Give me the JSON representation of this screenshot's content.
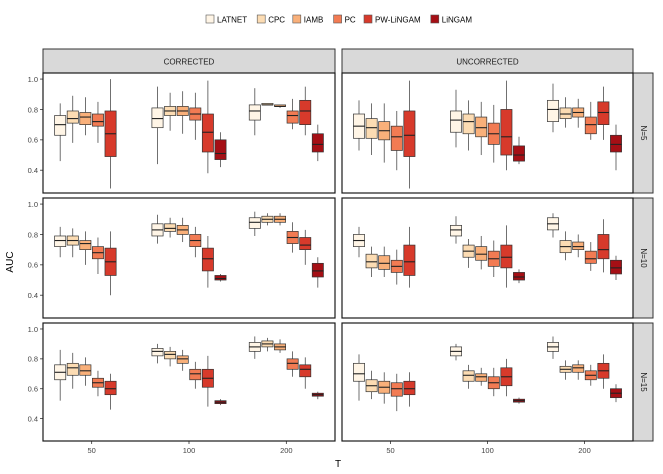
{
  "chart_data": {
    "type": "box",
    "legend": {
      "position": "top",
      "entries": [
        {
          "name": "LATNET",
          "color": "#fff5e6"
        },
        {
          "name": "CPC",
          "color": "#fcdcb3"
        },
        {
          "name": "IAMB",
          "color": "#f9b07a"
        },
        {
          "name": "PC",
          "color": "#f27b53"
        },
        {
          "name": "PW-LiNGAM",
          "color": "#d73a2b"
        },
        {
          "name": "LiNGAM",
          "color": "#a50f15"
        }
      ]
    },
    "xlabel": "T",
    "ylabel": "AUC",
    "x_categories": [
      "50",
      "100",
      "200"
    ],
    "ylim": [
      0.25,
      1.04
    ],
    "yticks": [
      0.4,
      0.6,
      0.8,
      1.0
    ],
    "ytick_labels": [
      "0.4",
      "0.6",
      "0.8",
      "1.0"
    ],
    "columns": [
      "CORRECTED",
      "UNCORRECTED"
    ],
    "rows": [
      "N=5",
      "N=10",
      "N=15"
    ],
    "panels": [
      {
        "column": "CORRECTED",
        "row": "N=5",
        "groups": [
          {
            "T": "50",
            "boxes": [
              [
                0.46,
                0.63,
                0.7,
                0.76,
                0.84
              ],
              [
                0.58,
                0.71,
                0.74,
                0.79,
                0.89
              ],
              [
                0.63,
                0.7,
                0.75,
                0.78,
                0.88
              ],
              [
                0.58,
                0.69,
                0.72,
                0.77,
                0.85
              ],
              [
                0.28,
                0.49,
                0.64,
                0.79,
                1.0
              ],
              null
            ]
          },
          {
            "T": "100",
            "boxes": [
              [
                0.44,
                0.68,
                0.74,
                0.81,
                0.95
              ],
              [
                0.66,
                0.76,
                0.79,
                0.82,
                0.91
              ],
              [
                0.64,
                0.76,
                0.79,
                0.82,
                0.92
              ],
              [
                0.6,
                0.73,
                0.77,
                0.81,
                0.91
              ],
              [
                0.38,
                0.52,
                0.65,
                0.77,
                0.99
              ],
              [
                0.42,
                0.47,
                0.51,
                0.6,
                0.65
              ]
            ]
          },
          {
            "T": "200",
            "boxes": [
              [
                0.63,
                0.73,
                0.79,
                0.83,
                0.94
              ],
              [
                0.83,
                0.83,
                0.83,
                0.84,
                0.84
              ],
              [
                0.81,
                0.82,
                0.82,
                0.83,
                0.83
              ],
              [
                0.67,
                0.71,
                0.76,
                0.79,
                0.87
              ],
              [
                0.63,
                0.7,
                0.79,
                0.86,
                0.95
              ],
              [
                0.46,
                0.52,
                0.57,
                0.64,
                0.7
              ]
            ]
          }
        ]
      },
      {
        "column": "UNCORRECTED",
        "row": "N=5",
        "groups": [
          {
            "T": "50",
            "boxes": [
              [
                0.53,
                0.61,
                0.69,
                0.77,
                0.86
              ],
              [
                0.5,
                0.61,
                0.68,
                0.74,
                0.84
              ],
              [
                0.45,
                0.6,
                0.66,
                0.72,
                0.84
              ],
              [
                0.4,
                0.53,
                0.62,
                0.69,
                0.79
              ],
              [
                0.28,
                0.49,
                0.63,
                0.79,
                0.99
              ],
              null
            ]
          },
          {
            "T": "100",
            "boxes": [
              [
                0.55,
                0.65,
                0.73,
                0.79,
                0.93
              ],
              [
                0.53,
                0.64,
                0.72,
                0.77,
                0.86
              ],
              [
                0.5,
                0.62,
                0.68,
                0.75,
                0.85
              ],
              [
                0.45,
                0.57,
                0.64,
                0.71,
                0.83
              ],
              [
                0.4,
                0.5,
                0.62,
                0.8,
                0.99
              ],
              [
                0.44,
                0.46,
                0.5,
                0.56,
                0.62
              ]
            ]
          },
          {
            "T": "200",
            "boxes": [
              [
                0.65,
                0.72,
                0.8,
                0.86,
                0.97
              ],
              [
                0.68,
                0.74,
                0.77,
                0.81,
                0.88
              ],
              [
                0.68,
                0.75,
                0.78,
                0.81,
                0.87
              ],
              [
                0.6,
                0.64,
                0.7,
                0.75,
                0.85
              ],
              [
                0.6,
                0.7,
                0.78,
                0.85,
                0.95
              ],
              [
                0.4,
                0.52,
                0.57,
                0.63,
                0.7
              ]
            ]
          }
        ]
      },
      {
        "column": "CORRECTED",
        "row": "N=10",
        "groups": [
          {
            "T": "50",
            "boxes": [
              [
                0.65,
                0.72,
                0.76,
                0.79,
                0.85
              ],
              [
                0.65,
                0.73,
                0.76,
                0.79,
                0.84
              ],
              [
                0.6,
                0.7,
                0.74,
                0.76,
                0.82
              ],
              [
                0.54,
                0.64,
                0.68,
                0.72,
                0.78
              ],
              [
                0.4,
                0.53,
                0.62,
                0.71,
                0.82
              ],
              null
            ]
          },
          {
            "T": "100",
            "boxes": [
              [
                0.74,
                0.79,
                0.83,
                0.87,
                0.93
              ],
              [
                0.78,
                0.82,
                0.84,
                0.87,
                0.91
              ],
              [
                0.75,
                0.8,
                0.83,
                0.86,
                0.91
              ],
              [
                0.65,
                0.72,
                0.76,
                0.8,
                0.85
              ],
              [
                0.45,
                0.56,
                0.64,
                0.71,
                0.79
              ],
              [
                0.49,
                0.5,
                0.51,
                0.53,
                0.54
              ]
            ]
          },
          {
            "T": "200",
            "boxes": [
              [
                0.79,
                0.84,
                0.88,
                0.91,
                0.95
              ],
              [
                0.86,
                0.88,
                0.9,
                0.92,
                0.94
              ],
              [
                0.86,
                0.88,
                0.9,
                0.92,
                0.94
              ],
              [
                0.68,
                0.74,
                0.78,
                0.82,
                0.88
              ],
              [
                0.6,
                0.7,
                0.73,
                0.78,
                0.83
              ],
              [
                0.45,
                0.52,
                0.56,
                0.61,
                0.65
              ]
            ]
          }
        ]
      },
      {
        "column": "UNCORRECTED",
        "row": "N=10",
        "groups": [
          {
            "T": "50",
            "boxes": [
              [
                0.65,
                0.72,
                0.76,
                0.8,
                0.85
              ],
              [
                0.52,
                0.58,
                0.62,
                0.67,
                0.72
              ],
              [
                0.52,
                0.57,
                0.61,
                0.66,
                0.72
              ],
              [
                0.47,
                0.55,
                0.59,
                0.63,
                0.7
              ],
              [
                0.45,
                0.53,
                0.62,
                0.73,
                0.85
              ],
              null
            ]
          },
          {
            "T": "100",
            "boxes": [
              [
                0.74,
                0.79,
                0.83,
                0.86,
                0.92
              ],
              [
                0.58,
                0.65,
                0.69,
                0.73,
                0.77
              ],
              [
                0.57,
                0.63,
                0.67,
                0.72,
                0.79
              ],
              [
                0.52,
                0.59,
                0.64,
                0.69,
                0.76
              ],
              [
                0.45,
                0.58,
                0.65,
                0.73,
                0.86
              ],
              [
                0.48,
                0.5,
                0.52,
                0.55,
                0.57
              ]
            ]
          },
          {
            "T": "200",
            "boxes": [
              [
                0.78,
                0.83,
                0.87,
                0.91,
                0.94
              ],
              [
                0.63,
                0.68,
                0.72,
                0.76,
                0.82
              ],
              [
                0.65,
                0.7,
                0.72,
                0.75,
                0.8
              ],
              [
                0.56,
                0.61,
                0.64,
                0.69,
                0.75
              ],
              [
                0.55,
                0.64,
                0.7,
                0.8,
                0.9
              ],
              [
                0.5,
                0.54,
                0.58,
                0.63,
                0.66
              ]
            ]
          }
        ]
      },
      {
        "column": "CORRECTED",
        "row": "N=15",
        "groups": [
          {
            "T": "50",
            "boxes": [
              [
                0.52,
                0.66,
                0.71,
                0.76,
                0.86
              ],
              [
                0.6,
                0.69,
                0.74,
                0.77,
                0.84
              ],
              [
                0.62,
                0.69,
                0.72,
                0.76,
                0.81
              ],
              [
                0.55,
                0.61,
                0.64,
                0.67,
                0.72
              ],
              [
                0.46,
                0.56,
                0.6,
                0.65,
                0.7
              ],
              null
            ]
          },
          {
            "T": "100",
            "boxes": [
              [
                0.77,
                0.82,
                0.85,
                0.87,
                0.9
              ],
              [
                0.75,
                0.8,
                0.83,
                0.85,
                0.88
              ],
              [
                0.72,
                0.77,
                0.8,
                0.82,
                0.86
              ],
              [
                0.6,
                0.66,
                0.7,
                0.73,
                0.78
              ],
              [
                0.48,
                0.61,
                0.67,
                0.73,
                0.82
              ],
              [
                0.49,
                0.5,
                0.51,
                0.52,
                0.53
              ]
            ]
          },
          {
            "T": "200",
            "boxes": [
              [
                0.8,
                0.85,
                0.88,
                0.91,
                0.95
              ],
              [
                0.85,
                0.88,
                0.9,
                0.92,
                0.94
              ],
              [
                0.84,
                0.86,
                0.88,
                0.9,
                0.93
              ],
              [
                0.68,
                0.73,
                0.77,
                0.8,
                0.85
              ],
              [
                0.6,
                0.68,
                0.73,
                0.76,
                0.81
              ],
              [
                0.53,
                0.55,
                0.56,
                0.57,
                0.58
              ]
            ]
          }
        ]
      },
      {
        "column": "UNCORRECTED",
        "row": "N=15",
        "groups": [
          {
            "T": "50",
            "boxes": [
              [
                0.52,
                0.65,
                0.7,
                0.77,
                0.83
              ],
              [
                0.53,
                0.58,
                0.62,
                0.66,
                0.72
              ],
              [
                0.5,
                0.57,
                0.61,
                0.65,
                0.71
              ],
              [
                0.45,
                0.55,
                0.6,
                0.64,
                0.7
              ],
              [
                0.48,
                0.56,
                0.6,
                0.65,
                0.71
              ],
              null
            ]
          },
          {
            "T": "100",
            "boxes": [
              [
                0.79,
                0.82,
                0.85,
                0.88,
                0.9
              ],
              [
                0.6,
                0.65,
                0.69,
                0.72,
                0.76
              ],
              [
                0.62,
                0.65,
                0.68,
                0.7,
                0.74
              ],
              [
                0.55,
                0.6,
                0.64,
                0.68,
                0.74
              ],
              [
                0.55,
                0.62,
                0.68,
                0.74,
                0.8
              ],
              [
                0.5,
                0.51,
                0.52,
                0.53,
                0.54
              ]
            ]
          },
          {
            "T": "200",
            "boxes": [
              [
                0.8,
                0.85,
                0.88,
                0.91,
                0.95
              ],
              [
                0.66,
                0.71,
                0.73,
                0.75,
                0.79
              ],
              [
                0.66,
                0.71,
                0.74,
                0.76,
                0.79
              ],
              [
                0.62,
                0.66,
                0.69,
                0.72,
                0.76
              ],
              [
                0.6,
                0.67,
                0.72,
                0.77,
                0.83
              ],
              [
                0.51,
                0.54,
                0.57,
                0.6,
                0.63
              ]
            ]
          }
        ]
      }
    ]
  }
}
